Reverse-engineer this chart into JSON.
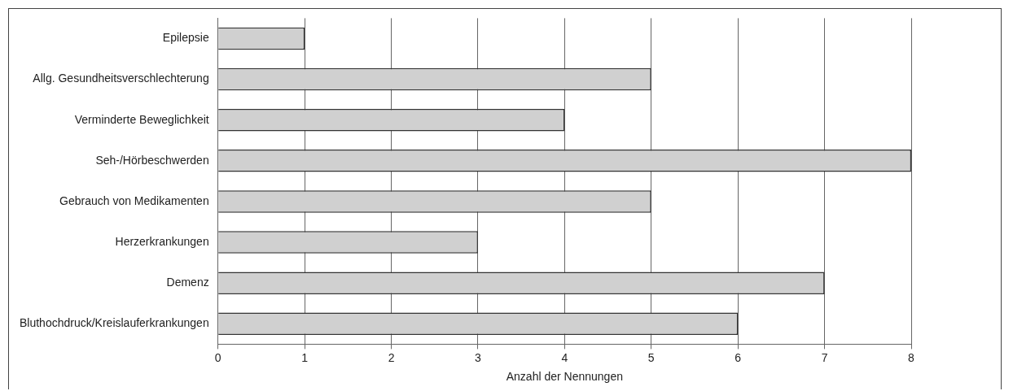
{
  "chart_data": {
    "type": "bar",
    "orientation": "horizontal",
    "xlabel": "Anzahl der Nennungen",
    "categories": [
      "Epilepsie",
      "Allg. Gesundheitsverschlechterung",
      "Verminderte Beweglichkeit",
      "Seh-/Hörbeschwerden",
      "Gebrauch von Medikamenten",
      "Herzerkrankungen",
      "Demenz",
      "Bluthochdruck/Kreislauferkrankungen"
    ],
    "values": [
      1,
      5,
      4,
      8,
      5,
      3,
      7,
      6
    ],
    "color": "#d0d0d0",
    "xlim": [
      0,
      8
    ],
    "xticks": [
      0,
      1,
      2,
      3,
      4,
      5,
      6,
      7,
      8
    ],
    "grid": "x",
    "legend": false
  }
}
